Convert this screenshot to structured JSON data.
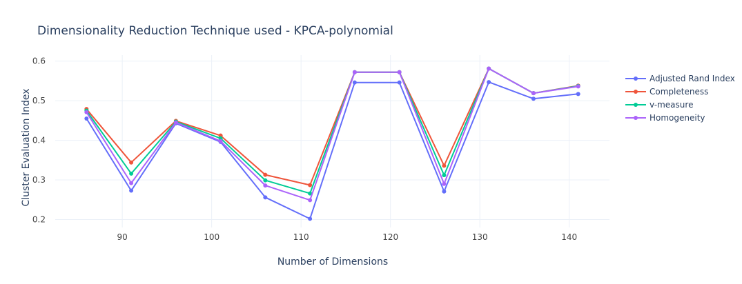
{
  "chart_data": {
    "type": "line",
    "title": "Dimensionality Reduction Technique used - KPCA-polynomial",
    "xlabel": "Number of Dimensions",
    "ylabel": "Cluster Evaluation Index",
    "xlim": [
      82.5,
      144.5
    ],
    "ylim": [
      0.18,
      0.615
    ],
    "xticks": [
      90,
      100,
      110,
      120,
      130,
      140
    ],
    "yticks": [
      0.2,
      0.3,
      0.4,
      0.5,
      0.6
    ],
    "grid": true,
    "legend_position": "right",
    "x": [
      86,
      91,
      96,
      101,
      106,
      111,
      116,
      121,
      126,
      131,
      136,
      141
    ],
    "series": [
      {
        "name": "Adjusted Rand Index",
        "color": "#636efa",
        "values": [
          0.455,
          0.273,
          0.443,
          0.396,
          0.256,
          0.202,
          0.546,
          0.546,
          0.271,
          0.547,
          0.505,
          0.517
        ]
      },
      {
        "name": "Completeness",
        "color": "#EF553B",
        "values": [
          0.479,
          0.344,
          0.449,
          0.412,
          0.313,
          0.287,
          0.572,
          0.572,
          0.336,
          0.581,
          0.519,
          0.538
        ]
      },
      {
        "name": "v-measure",
        "color": "#00cc96",
        "values": [
          0.475,
          0.316,
          0.447,
          0.405,
          0.299,
          0.266,
          0.572,
          0.572,
          0.312,
          0.581,
          0.519,
          0.537
        ]
      },
      {
        "name": "Homogeneity",
        "color": "#ab63fa",
        "values": [
          0.471,
          0.292,
          0.445,
          0.398,
          0.286,
          0.249,
          0.572,
          0.572,
          0.29,
          0.581,
          0.519,
          0.536
        ]
      }
    ]
  }
}
